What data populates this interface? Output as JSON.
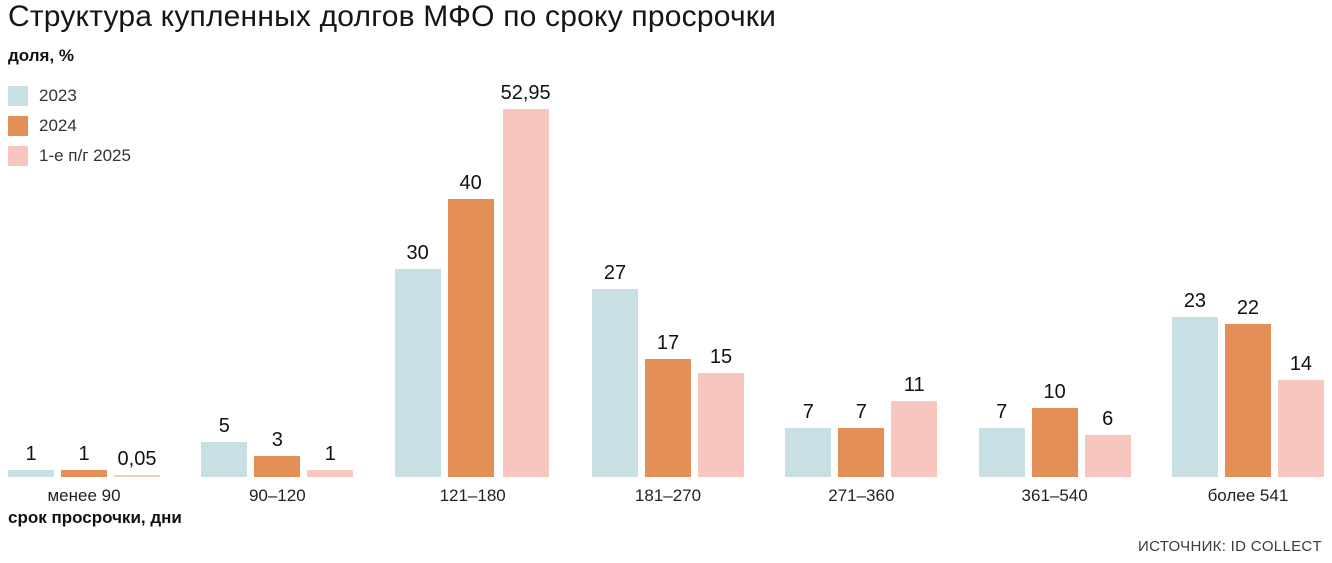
{
  "title": "Структура купленных долгов МФО по сроку просрочки",
  "ylabel": "доля, %",
  "xlabel": "срок просрочки, дни",
  "source": "ИСТОЧНИК: ID COLLECT",
  "chart_data": {
    "type": "bar",
    "categories": [
      "менее 90",
      "90–120",
      "121–180",
      "181–270",
      "271–360",
      "361–540",
      "более 541"
    ],
    "series": [
      {
        "name": "2023",
        "color": "#c8e0e4",
        "values": [
          1,
          5,
          30,
          27,
          7,
          7,
          23
        ],
        "labels": [
          "1",
          "5",
          "30",
          "27",
          "7",
          "7",
          "23"
        ]
      },
      {
        "name": "2024",
        "color": "#e58f58",
        "values": [
          1,
          3,
          40,
          17,
          7,
          10,
          22
        ],
        "labels": [
          "1",
          "3",
          "40",
          "17",
          "7",
          "10",
          "22"
        ]
      },
      {
        "name": "1-е п/г 2025",
        "color": "#f7c6be",
        "values": [
          0.05,
          1,
          52.95,
          15,
          11,
          6,
          14
        ],
        "labels": [
          "0,05",
          "1",
          "52,95",
          "15",
          "11",
          "6",
          "14"
        ]
      }
    ],
    "ylim": [
      0,
      55
    ],
    "grid": false,
    "legend_position": "top-left"
  }
}
